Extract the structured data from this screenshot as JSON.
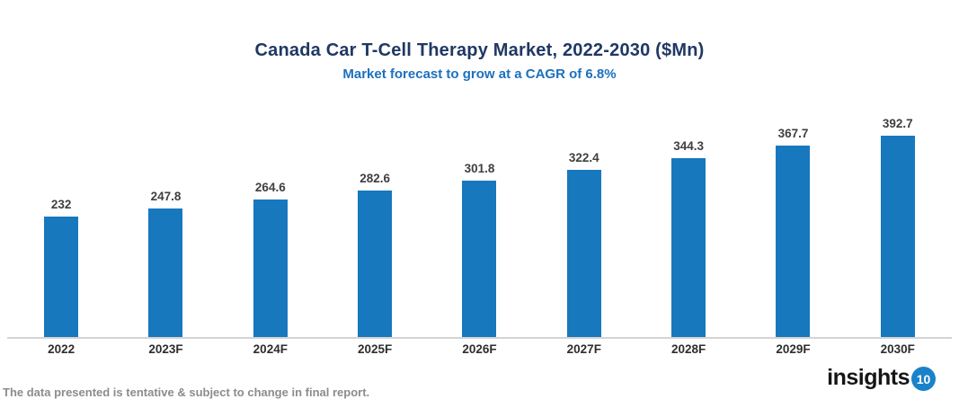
{
  "header": {
    "title": "Canada Car T-Cell Therapy Market, 2022-2030 ($Mn)",
    "subtitle": "Market forecast to grow at a CAGR of 6.8%"
  },
  "footer": {
    "disclaimer": "The data presented is tentative & subject to change in final report."
  },
  "logo": {
    "text": "insights",
    "badge": "10"
  },
  "colors": {
    "bar": "#1778BE",
    "title": "#1F3864",
    "subtitle": "#1C70BE",
    "axis_line": "#D4D4D4",
    "value_label": "#3F3F3F",
    "x_label": "#2E2E2E",
    "footer_text": "#8C8C8C",
    "logo_badge": "#1B82C9"
  },
  "chart_data": {
    "type": "bar",
    "title": "Canada Car T-Cell Therapy Market, 2022-2030 ($Mn)",
    "subtitle": "Market forecast to grow at a CAGR of 6.8%",
    "categories": [
      "2022",
      "2023F",
      "2024F",
      "2025F",
      "2026F",
      "2027F",
      "2028F",
      "2029F",
      "2030F"
    ],
    "values": [
      232,
      247.8,
      264.6,
      282.6,
      301.8,
      322.4,
      344.3,
      367.7,
      392.7
    ],
    "xlabel": "",
    "ylabel": "",
    "ylim": [
      0,
      420
    ],
    "bar_color": "#1778BE",
    "grid": false,
    "legend": false,
    "data_labels": true,
    "data_labels_position": "above-bar"
  }
}
